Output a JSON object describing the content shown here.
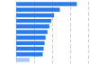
{
  "chart_data": {
    "type": "bar",
    "orientation": "horizontal",
    "categories": [
      null,
      null,
      null,
      null,
      null,
      null,
      null,
      null,
      null,
      null,
      null
    ],
    "values": [
      3.2,
      2.3,
      2.0,
      1.85,
      1.75,
      1.65,
      1.55,
      1.5,
      1.45,
      1.4,
      0.7
    ],
    "colors": [
      "#2b7beb",
      "#2b7beb",
      "#2b7beb",
      "#2b7beb",
      "#2b7beb",
      "#2b7beb",
      "#2b7beb",
      "#2b7beb",
      "#2b7beb",
      "#2b7beb",
      "#a8c8f8"
    ],
    "xlim": [
      0,
      3.8
    ],
    "xticks": [
      0,
      0.95,
      1.9,
      2.85,
      3.8
    ],
    "grid": true,
    "tick_labels": false
  }
}
